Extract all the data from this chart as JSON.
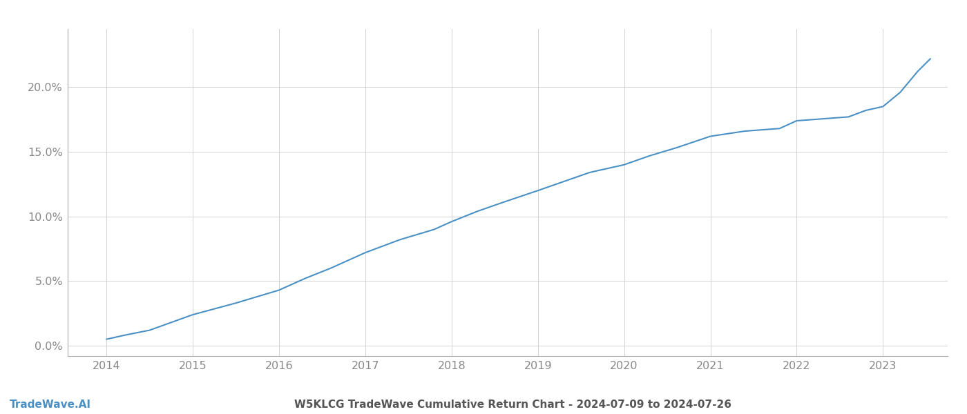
{
  "title": "W5KLCG TradeWave Cumulative Return Chart - 2024-07-09 to 2024-07-26",
  "watermark": "TradeWave.AI",
  "line_color": "#4a90c4",
  "background_color": "#ffffff",
  "grid_color": "#cccccc",
  "x_years": [
    2014,
    2015,
    2016,
    2017,
    2018,
    2019,
    2020,
    2021,
    2022,
    2023
  ],
  "x_data": [
    2014.0,
    2014.2,
    2014.5,
    2015.0,
    2015.5,
    2016.0,
    2016.3,
    2016.6,
    2017.0,
    2017.4,
    2017.8,
    2018.0,
    2018.3,
    2018.6,
    2019.0,
    2019.3,
    2019.6,
    2020.0,
    2020.3,
    2020.6,
    2021.0,
    2021.2,
    2021.4,
    2021.6,
    2021.8,
    2022.0,
    2022.2,
    2022.4,
    2022.6,
    2022.8,
    2023.0,
    2023.2,
    2023.4,
    2023.55
  ],
  "y_data": [
    0.005,
    0.008,
    0.012,
    0.024,
    0.033,
    0.043,
    0.052,
    0.06,
    0.072,
    0.082,
    0.09,
    0.096,
    0.104,
    0.111,
    0.12,
    0.127,
    0.134,
    0.14,
    0.147,
    0.153,
    0.162,
    0.164,
    0.166,
    0.167,
    0.168,
    0.174,
    0.175,
    0.176,
    0.177,
    0.182,
    0.185,
    0.196,
    0.212,
    0.222
  ],
  "ylim": [
    -0.008,
    0.245
  ],
  "xlim": [
    2013.55,
    2023.75
  ],
  "yticks": [
    0.0,
    0.05,
    0.1,
    0.15,
    0.2
  ],
  "ytick_labels": [
    "0.0%",
    "5.0%",
    "10.0%",
    "15.0%",
    "20.0%"
  ],
  "line_width": 1.5,
  "title_fontsize": 11,
  "tick_fontsize": 11.5,
  "watermark_fontsize": 11,
  "axis_label_color": "#888888",
  "title_color": "#555555",
  "spine_color": "#aaaaaa"
}
